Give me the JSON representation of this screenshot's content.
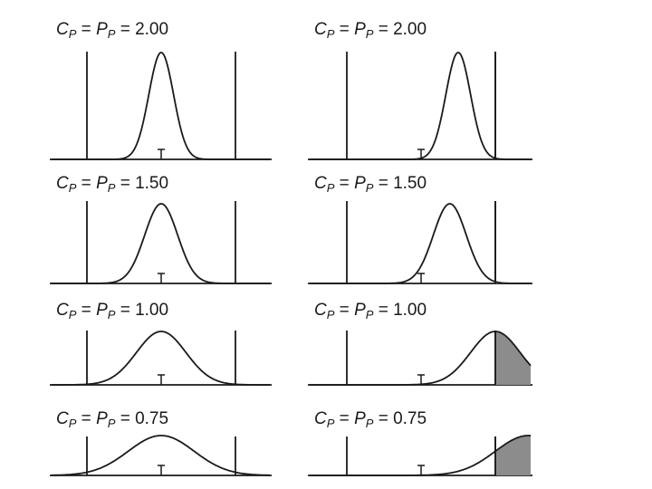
{
  "panels": [
    {
      "label_sym": "C",
      "label_sub": "P",
      "label_eq": "= ",
      "label_sym2": "P",
      "label_sub2": "P",
      "label_val": "= 2.00",
      "index": 2.0,
      "centered": true
    },
    {
      "label_sym": "C",
      "label_sub": "P",
      "label_eq": "= ",
      "label_sym2": "P",
      "label_sub2": "P",
      "label_val": "= 2.00",
      "index": 2.0,
      "centered": false
    },
    {
      "label_sym": "C",
      "label_sub": "P",
      "label_eq": "= ",
      "label_sym2": "P",
      "label_sub2": "P",
      "label_val": "= 1.50",
      "index": 1.5,
      "centered": true
    },
    {
      "label_sym": "C",
      "label_sub": "P",
      "label_eq": "= ",
      "label_sym2": "P",
      "label_sub2": "P",
      "label_val": "= 1.50",
      "index": 1.5,
      "centered": false
    },
    {
      "label_sym": "C",
      "label_sub": "P",
      "label_eq": "= ",
      "label_sym2": "P",
      "label_sub2": "P",
      "label_val": "= 1.00",
      "index": 1.0,
      "centered": true
    },
    {
      "label_sym": "C",
      "label_sub": "P",
      "label_eq": "= ",
      "label_sym2": "P",
      "label_sub2": "P",
      "label_val": "= 1.00",
      "index": 1.0,
      "centered": false
    },
    {
      "label_sym": "C",
      "label_sub": "P",
      "label_eq": "= ",
      "label_sym2": "P",
      "label_sub2": "P",
      "label_val": "= 0.75",
      "index": 0.75,
      "centered": true
    },
    {
      "label_sym": "C",
      "label_sub": "P",
      "label_eq": "= ",
      "label_sym2": "P",
      "label_sub2": "P",
      "label_val": "= 0.75",
      "index": 0.75,
      "centered": false
    }
  ],
  "colors": {
    "line": "#1a1a1a",
    "tail_fill": "#8c8c8c",
    "background": "#ffffff"
  }
}
